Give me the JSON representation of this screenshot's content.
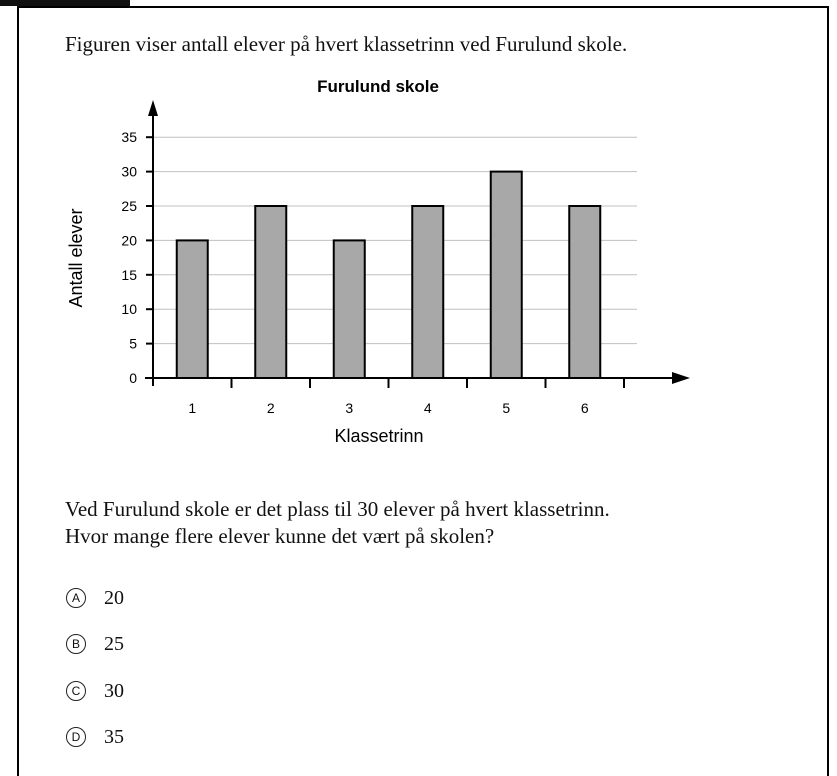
{
  "question": {
    "intro": "Figuren viser antall elever på hvert klassetrinn ved Furulund skole.",
    "line1": "Ved Furulund skole er det plass til 30 elever på hvert klassetrinn.",
    "line2": "Hvor mange flere elever kunne det vært på skolen?"
  },
  "options": [
    {
      "letter": "A",
      "value": "20"
    },
    {
      "letter": "B",
      "value": "25"
    },
    {
      "letter": "C",
      "value": "30"
    },
    {
      "letter": "D",
      "value": "35"
    }
  ],
  "chart_data": {
    "type": "bar",
    "title": "Furulund skole",
    "xlabel": "Klassetrinn",
    "ylabel": "Antall elever",
    "categories": [
      "1",
      "2",
      "3",
      "4",
      "5",
      "6"
    ],
    "values": [
      20,
      25,
      20,
      25,
      30,
      25
    ],
    "ylim": [
      0,
      35
    ],
    "yticks": [
      0,
      5,
      10,
      15,
      20,
      25,
      30,
      35
    ],
    "grid": true,
    "bar_color": "#a8a8a8",
    "bar_edge_color": "#000000",
    "grid_color": "#c0c0c0"
  }
}
